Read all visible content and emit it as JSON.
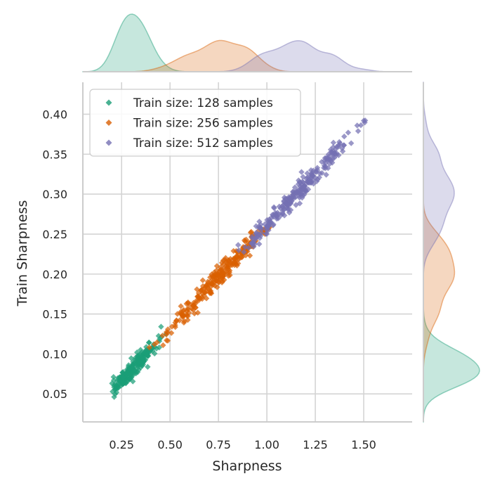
{
  "chart_data": {
    "type": "scatter",
    "xlabel": "Sharpness",
    "ylabel": "Train Sharpness",
    "xlim": [
      0.05,
      1.75
    ],
    "ylim": [
      0.015,
      0.44
    ],
    "xticks": [
      0.25,
      0.5,
      0.75,
      1.0,
      1.25,
      1.5
    ],
    "xtick_labels": [
      "0.25",
      "0.50",
      "0.75",
      "1.00",
      "1.25",
      "1.50"
    ],
    "yticks": [
      0.05,
      0.1,
      0.15,
      0.2,
      0.25,
      0.3,
      0.35,
      0.4
    ],
    "ytick_labels": [
      "0.05",
      "0.10",
      "0.15",
      "0.20",
      "0.25",
      "0.30",
      "0.35",
      "0.40"
    ],
    "grid": true,
    "marker": "diamond",
    "legend_position": "top-left",
    "marginals": "kde",
    "series": [
      {
        "name": "Train size: 128 samples",
        "color": "#1b9e77",
        "x_range": [
          0.2,
          0.52
        ],
        "y_range": [
          0.045,
          0.135
        ],
        "x_mode": 0.3,
        "relation": {
          "slope": 0.258,
          "intercept": 0.003,
          "noise": 0.006
        },
        "n_points": 220
      },
      {
        "name": "Train size: 256 samples",
        "color": "#d95f02",
        "x_range": [
          0.38,
          1.05
        ],
        "y_range": [
          0.1,
          0.26
        ],
        "x_mode": 0.77,
        "relation": {
          "slope": 0.258,
          "intercept": 0.003,
          "noise": 0.006
        },
        "n_points": 260
      },
      {
        "name": "Train size: 512 samples",
        "color": "#7570b3",
        "x_range": [
          0.85,
          1.57
        ],
        "y_range": [
          0.22,
          0.4
        ],
        "x_mode": 1.15,
        "relation": {
          "slope": 0.258,
          "intercept": 0.003,
          "noise": 0.006
        },
        "n_points": 260
      }
    ]
  }
}
